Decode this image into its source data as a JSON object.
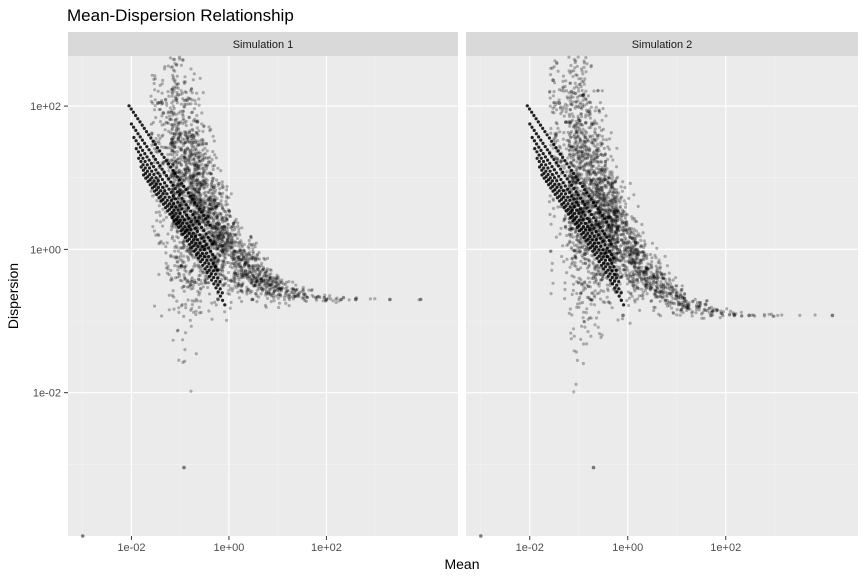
{
  "chart_data": {
    "type": "scatter",
    "title": "Mean-Dispersion Relationship",
    "xlabel": "Mean",
    "ylabel": "Dispersion",
    "x_scale": "log10",
    "y_scale": "log10",
    "xlim": [
      0.0005,
      50000
    ],
    "ylim": [
      0.0001,
      500
    ],
    "x_ticks": [
      0.01,
      1,
      100
    ],
    "x_tick_labels": [
      "1e-02",
      "1e+00",
      "1e+02"
    ],
    "y_ticks": [
      0.01,
      1,
      100
    ],
    "y_tick_labels": [
      "1e-02",
      "1e+00",
      "1e+02"
    ],
    "grid": true,
    "legend": "none",
    "point_color": "#000000",
    "panel_background": "#ebebeb",
    "strip_background": "#d9d9d9",
    "panels": [
      {
        "name": "Simulation 1",
        "asymptotic_dispersion": 0.2,
        "max_mean": 300,
        "outlier_points": [
          [
            0.001,
            0.0001
          ],
          [
            0.035,
            110
          ],
          [
            0.045,
            80
          ],
          [
            0.12,
            0.0009
          ],
          [
            0.6,
            0.2
          ],
          [
            3,
            0.2
          ],
          [
            100,
            0.2
          ],
          [
            200,
            0.2
          ],
          [
            400,
            0.2
          ],
          [
            2000,
            0.2
          ]
        ]
      },
      {
        "name": "Simulation 2",
        "asymptotic_dispersion": 0.12,
        "max_mean": 300,
        "outlier_points": [
          [
            0.001,
            0.0001
          ],
          [
            0.03,
            230
          ],
          [
            0.04,
            110
          ],
          [
            0.055,
            60
          ],
          [
            0.2,
            0.0009
          ],
          [
            0.8,
            0.12
          ],
          [
            50,
            0.12
          ],
          [
            150,
            0.12
          ],
          [
            300,
            0.12
          ],
          [
            15000,
            0.12
          ]
        ]
      }
    ]
  }
}
